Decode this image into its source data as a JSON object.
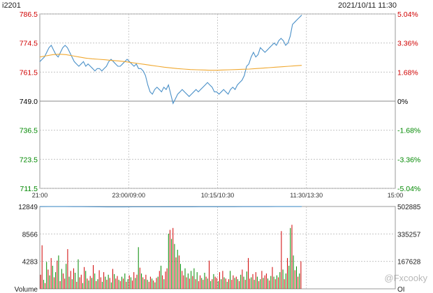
{
  "header": {
    "code": "i2201",
    "timestamp": "2021/10/11 11:30"
  },
  "watermark": "@Fxcooky",
  "colors": {
    "price": "#4a90c8",
    "avg": "#f0a830",
    "up": "#d00000",
    "down": "#008800",
    "oi": "#4a90c8",
    "grid": "#bbbbbb"
  },
  "chart_data": [
    {
      "type": "line",
      "name": "price",
      "ylim": [
        711.5,
        786.5
      ],
      "prev_close": 749.0,
      "y_ticks_left": [
        "786.5",
        "774.5",
        "761.5",
        "749.0",
        "736.5",
        "723.5",
        "711.5"
      ],
      "y_ticks_right": [
        "5.04%",
        "3.36%",
        "1.68%",
        "0%",
        "-1.68%",
        "-3.36%",
        "-5.04%"
      ],
      "x_ticks": [
        "21:00",
        "23:00/09:00",
        "10:15/10:30",
        "11:30/13:30",
        "15:00"
      ],
      "price": [
        766,
        767,
        768,
        770,
        772,
        773,
        771,
        769,
        768,
        770,
        772,
        773,
        772,
        770,
        768,
        766,
        765,
        764,
        765,
        766,
        764,
        765,
        764,
        763,
        762,
        763,
        763,
        762,
        763,
        764,
        766,
        767,
        766,
        765,
        764,
        764,
        765,
        766,
        767,
        766,
        765,
        764,
        765,
        763,
        763,
        762,
        760,
        756,
        753,
        752,
        754,
        755,
        754,
        753,
        755,
        754,
        756,
        752,
        748,
        750,
        752,
        753,
        754,
        753,
        752,
        751,
        752,
        753,
        754,
        753,
        754,
        755,
        756,
        757,
        756,
        755,
        753,
        753,
        752,
        753,
        754,
        753,
        752,
        754,
        755,
        754,
        756,
        757,
        758,
        760,
        764,
        765,
        768,
        770,
        768,
        769,
        772,
        771,
        770,
        771,
        772,
        773,
        774,
        773,
        775,
        776,
        775,
        773,
        774,
        777,
        782,
        783,
        784,
        785,
        786
      ],
      "avg": [
        768.0,
        768.5,
        769.0,
        769.2,
        769.0,
        768.5,
        768.0,
        767.5,
        767.2,
        767.0,
        766.8,
        766.5,
        766.3,
        766.0,
        765.6,
        765.2,
        764.8,
        764.4,
        764.0,
        763.6,
        763.3,
        763.0,
        762.8,
        762.6,
        762.5,
        762.4,
        762.3,
        762.3,
        762.4,
        762.5,
        762.6,
        762.7,
        762.8,
        763.0,
        763.2,
        763.4,
        763.6,
        763.8,
        764.0,
        764.2,
        764.4
      ]
    },
    {
      "type": "bar",
      "name": "Volume",
      "ylim": [
        0,
        12849
      ],
      "y_ticks_left": [
        "12849",
        "8566",
        "4283",
        "Volume"
      ],
      "y_ticks_right": [
        "502885",
        "335257",
        "167628",
        "OI"
      ],
      "oi_ylim": [
        0,
        502885
      ],
      "oi": [
        502000,
        502400,
        502600,
        502300,
        502100,
        502000,
        501800,
        501200,
        500500,
        500200,
        500400,
        500600,
        500700,
        500800,
        500900,
        501000,
        501100,
        501200,
        501300,
        501400,
        501500,
        501600,
        501700,
        501800,
        501900,
        502000,
        502100,
        502200,
        502300,
        502400,
        502500,
        502600
      ],
      "volume": [
        2200,
        6800,
        1400,
        900,
        4200,
        3000,
        2100,
        4800,
        3600,
        1800,
        2600,
        4400,
        5200,
        1200,
        3100,
        2400,
        1600,
        3900,
        6200,
        1900,
        2800,
        1500,
        3200,
        2500,
        1100,
        4600,
        1800,
        2200,
        900,
        3400,
        2800,
        1600,
        1300,
        2000,
        1700,
        3700,
        2400,
        1200,
        1500,
        2900,
        1800,
        1100,
        2600,
        1900,
        1400,
        2200,
        1700,
        1000,
        3100,
        2300,
        1600,
        2000,
        1400,
        1200,
        1900,
        1600,
        2400,
        1100,
        1500,
        2100,
        1800,
        1300,
        2600,
        1700,
        2200,
        6500,
        3300,
        2400,
        1800,
        1500,
        2200,
        1400,
        1100,
        1900,
        1600,
        1300,
        1000,
        1700,
        1900,
        2800,
        3600,
        2100,
        1500,
        2700,
        3200,
        8600,
        9200,
        7800,
        9500,
        7000,
        4900,
        6100,
        5200,
        3900,
        2800,
        2100,
        3200,
        1800,
        2400,
        1600,
        2800,
        2000,
        3200,
        1500,
        2600,
        1200,
        2100,
        1700,
        1400,
        2500,
        1900,
        1600,
        4400,
        1200,
        1500,
        2300,
        1900,
        1700,
        1200,
        2600,
        1500,
        2800,
        1800,
        1600,
        1100,
        1500,
        2800,
        1400,
        2100,
        1700,
        1900,
        1500,
        1200,
        2200,
        3000,
        1900,
        1400,
        2700,
        4800,
        1600,
        1800,
        2300,
        1400,
        2600,
        1900,
        1200,
        1500,
        2800,
        1700,
        2100,
        2400,
        1600,
        1300,
        2000,
        3400,
        1900,
        1500,
        2100,
        1800,
        2600,
        9000,
        3000,
        1500,
        2400,
        4800,
        3600,
        9500,
        10000,
        5200,
        2900,
        3500,
        1900,
        2400,
        4300
      ],
      "volume_up": [
        true,
        true,
        false,
        true,
        false,
        true,
        false,
        true,
        false,
        true,
        false,
        true,
        false,
        true,
        false,
        true,
        true,
        false,
        true,
        false,
        true,
        false,
        true,
        false,
        true,
        false,
        true,
        true,
        false,
        true,
        false,
        true,
        false,
        true,
        false,
        true,
        false,
        true,
        false,
        true,
        true,
        false,
        true,
        false,
        true,
        false,
        true,
        false,
        true,
        false,
        true,
        true,
        false,
        true,
        false,
        true,
        false,
        true,
        false,
        true,
        false,
        true,
        true,
        false,
        true,
        false,
        true,
        false,
        true,
        false,
        true,
        false,
        true,
        true,
        false,
        true,
        false,
        true,
        false,
        true,
        false,
        true,
        false,
        true,
        true,
        false,
        true,
        false,
        true,
        false,
        true,
        false,
        true,
        false,
        true,
        true,
        false,
        true,
        false,
        true,
        false,
        true,
        false,
        true,
        false,
        true,
        true,
        false,
        true,
        false,
        true,
        false,
        true,
        false,
        true,
        false,
        true,
        true,
        false,
        true,
        false,
        true,
        false,
        true,
        false,
        true,
        false,
        true,
        true,
        false,
        true,
        false,
        true,
        false,
        true,
        false,
        true,
        false,
        true,
        true,
        false,
        true,
        false,
        true,
        false,
        true,
        false,
        true,
        false,
        true,
        true,
        false,
        true,
        false,
        true,
        false,
        true,
        false,
        true,
        false,
        true,
        false,
        true,
        false,
        true,
        false,
        false,
        true,
        false,
        true,
        false,
        true,
        false,
        true
      ]
    }
  ]
}
